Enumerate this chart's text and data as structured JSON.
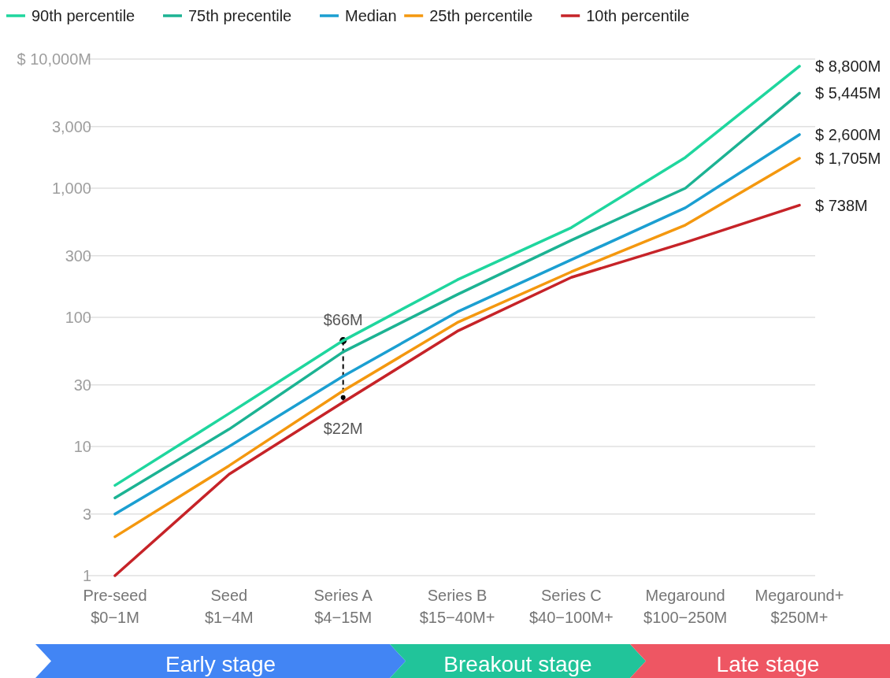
{
  "chart_data": {
    "type": "line",
    "categories": [
      "Pre-seed\n$0−1M",
      "Seed\n$1−4M",
      "Series A\n$4−15M",
      "Series B\n$15−40M+",
      "Series C\n$40−100M+",
      "Megaround\n$100−250M",
      "Megaround+\n$250M+"
    ],
    "series": [
      {
        "name": "90th percentile",
        "color": "#1fd69e",
        "values": [
          5,
          18,
          66,
          195,
          495,
          1730,
          8800
        ],
        "value_labels": [
          null,
          null,
          null,
          null,
          null,
          null,
          "$ 8,800M"
        ]
      },
      {
        "name": "75th precentile",
        "color": "#1cb393",
        "values": [
          4,
          13.6,
          54,
          150,
          395,
          1000,
          5445
        ],
        "value_labels": [
          null,
          null,
          null,
          null,
          null,
          null,
          "$ 5,445M"
        ]
      },
      {
        "name": "Median",
        "color": "#1b9fd1",
        "values": [
          3,
          10,
          35,
          110,
          279,
          705,
          2600
        ],
        "value_labels": [
          null,
          null,
          null,
          null,
          null,
          null,
          "$ 2,600M"
        ]
      },
      {
        "name": "25th percentile",
        "color": "#f4980f",
        "values": [
          2,
          7.1,
          27,
          91,
          225,
          518,
          1705
        ],
        "value_labels": [
          null,
          null,
          null,
          null,
          null,
          null,
          "$ 1,705M"
        ]
      },
      {
        "name": "10th percentile",
        "color": "#c62328",
        "values": [
          1,
          6.1,
          22,
          78,
          204,
          380,
          738
        ],
        "value_labels": [
          null,
          null,
          null,
          null,
          null,
          null,
          "$ 738M"
        ]
      }
    ],
    "log": true,
    "ylim": [
      1,
      10000
    ],
    "yticks": [
      1,
      3,
      10,
      30,
      100,
      300,
      {
        "value": 1000,
        "label": "1,000"
      },
      {
        "value": 3000,
        "label": "3,000"
      },
      {
        "value": 10000,
        "label": "$ 10,000M"
      }
    ],
    "grid": "y",
    "legend": "top",
    "annotations": [
      {
        "text": "$66M",
        "x": "Series A\n$4−15M",
        "y": 66
      },
      {
        "text": "$22M",
        "x": "Series A\n$4−15M",
        "y": 22
      },
      "Early stage",
      "Breakout stage",
      "Late stage"
    ]
  }
}
